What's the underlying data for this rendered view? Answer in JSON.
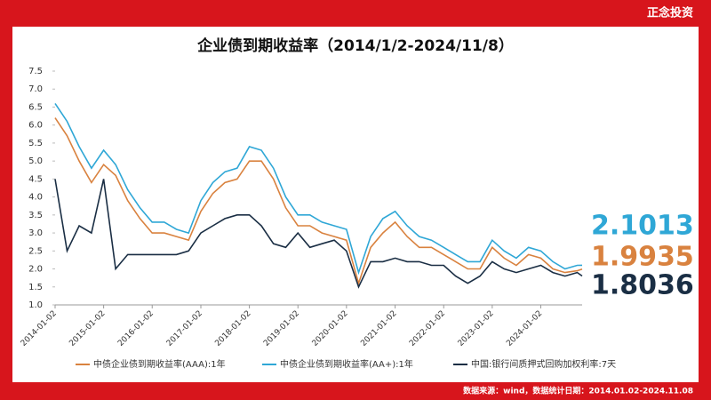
{
  "header": {
    "brand": "正念投资"
  },
  "chart_data": {
    "type": "line",
    "title": "企业债到期收益率（2014/1/2-2024/11/8）",
    "x": [
      "2014-01-02",
      "2014-04-02",
      "2014-07-02",
      "2014-10-02",
      "2015-01-02",
      "2015-04-02",
      "2015-07-02",
      "2015-10-02",
      "2016-01-02",
      "2016-04-02",
      "2016-07-02",
      "2016-10-02",
      "2017-01-02",
      "2017-04-02",
      "2017-07-02",
      "2017-10-02",
      "2018-01-02",
      "2018-04-02",
      "2018-07-02",
      "2018-10-02",
      "2019-01-02",
      "2019-04-02",
      "2019-07-02",
      "2019-10-02",
      "2020-01-02",
      "2020-04-02",
      "2020-07-02",
      "2020-10-02",
      "2021-01-02",
      "2021-04-02",
      "2021-07-02",
      "2021-10-02",
      "2022-01-02",
      "2022-04-02",
      "2022-07-02",
      "2022-10-02",
      "2023-01-02",
      "2023-04-02",
      "2023-07-02",
      "2023-10-02",
      "2024-01-02",
      "2024-04-02",
      "2024-07-02",
      "2024-10-02",
      "2024-11-08"
    ],
    "series": [
      {
        "name": "中债企业债到期收益率(AAA):1年",
        "color": "#d9823f",
        "values": [
          6.2,
          5.7,
          5.0,
          4.4,
          4.9,
          4.6,
          3.9,
          3.4,
          3.0,
          3.0,
          2.9,
          2.8,
          3.6,
          4.1,
          4.4,
          4.5,
          5.0,
          5.0,
          4.5,
          3.7,
          3.2,
          3.2,
          3.0,
          2.9,
          2.8,
          1.6,
          2.6,
          3.0,
          3.3,
          2.9,
          2.6,
          2.6,
          2.4,
          2.2,
          2.0,
          2.0,
          2.6,
          2.3,
          2.1,
          2.4,
          2.3,
          2.0,
          1.9,
          1.95,
          1.9935
        ]
      },
      {
        "name": "中债企业债到期收益率(AA+):1年",
        "color": "#2fa7d6",
        "values": [
          6.6,
          6.1,
          5.4,
          4.8,
          5.3,
          4.9,
          4.2,
          3.7,
          3.3,
          3.3,
          3.1,
          3.0,
          3.9,
          4.4,
          4.7,
          4.8,
          5.4,
          5.3,
          4.8,
          4.0,
          3.5,
          3.5,
          3.3,
          3.2,
          3.1,
          1.9,
          2.9,
          3.4,
          3.6,
          3.2,
          2.9,
          2.8,
          2.6,
          2.4,
          2.2,
          2.2,
          2.8,
          2.5,
          2.3,
          2.6,
          2.5,
          2.2,
          2.0,
          2.1,
          2.1013
        ]
      },
      {
        "name": "中国:银行间质押式回购加权利率:7天",
        "color": "#1a2e44",
        "values": [
          4.5,
          2.5,
          3.2,
          3.0,
          4.5,
          2.0,
          2.4,
          2.4,
          2.4,
          2.4,
          2.4,
          2.5,
          3.0,
          3.2,
          3.4,
          3.5,
          3.5,
          3.2,
          2.7,
          2.6,
          3.0,
          2.6,
          2.7,
          2.8,
          2.5,
          1.5,
          2.2,
          2.2,
          2.3,
          2.2,
          2.2,
          2.1,
          2.1,
          1.8,
          1.6,
          1.8,
          2.2,
          2.0,
          1.9,
          2.0,
          2.1,
          1.9,
          1.8,
          1.9,
          1.8036
        ]
      }
    ],
    "xlim": [
      "2014-01-02",
      "2024-11-08"
    ],
    "xticks": [
      "2014-01-02",
      "2015-01-02",
      "2016-01-02",
      "2017-01-02",
      "2018-01-02",
      "2019-01-02",
      "2020-01-02",
      "2021-01-02",
      "2022-01-02",
      "2023-01-02",
      "2024-01-02"
    ],
    "ylim": [
      1,
      7.5
    ],
    "yticks": [
      {
        "value": 1,
        "label": "1.0"
      },
      1.5,
      {
        "value": 2,
        "label": "2.0"
      },
      2.5,
      {
        "value": 3,
        "label": "3.0"
      },
      3.5,
      {
        "value": 4,
        "label": "4.0"
      },
      4.5,
      {
        "value": 5,
        "label": "5.0"
      },
      5.5,
      {
        "value": 6,
        "label": "6.0"
      },
      6.5,
      {
        "value": 7,
        "label": "7.0"
      },
      7.5
    ],
    "grid": false
  },
  "footer": {
    "source": "数据来源：wind，数据统计日期：2014.01.02-2024.11.08"
  }
}
